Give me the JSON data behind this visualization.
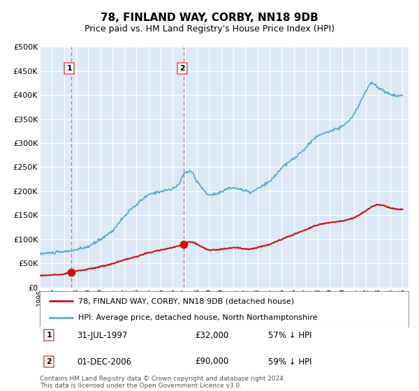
{
  "title": "78, FINLAND WAY, CORBY, NN18 9DB",
  "subtitle": "Price paid vs. HM Land Registry's House Price Index (HPI)",
  "plot_bg_color": "#dce8f5",
  "grid_color": "#ffffff",
  "sale1_date": 1997.58,
  "sale1_price": 32000,
  "sale1_label": "1",
  "sale2_date": 2006.92,
  "sale2_price": 90000,
  "sale2_label": "2",
  "legend_line1": "78, FINLAND WAY, CORBY, NN18 9DB (detached house)",
  "legend_line2": "HPI: Average price, detached house, North Northamptonshire",
  "footer": "Contains HM Land Registry data © Crown copyright and database right 2024.\nThis data is licensed under the Open Government Licence v3.0.",
  "xmin": 1995.0,
  "xmax": 2025.5,
  "ymin": 0,
  "ymax": 500000,
  "red_color": "#cc1111",
  "blue_color": "#5ba8d4",
  "dashed_color": "#dd5555"
}
